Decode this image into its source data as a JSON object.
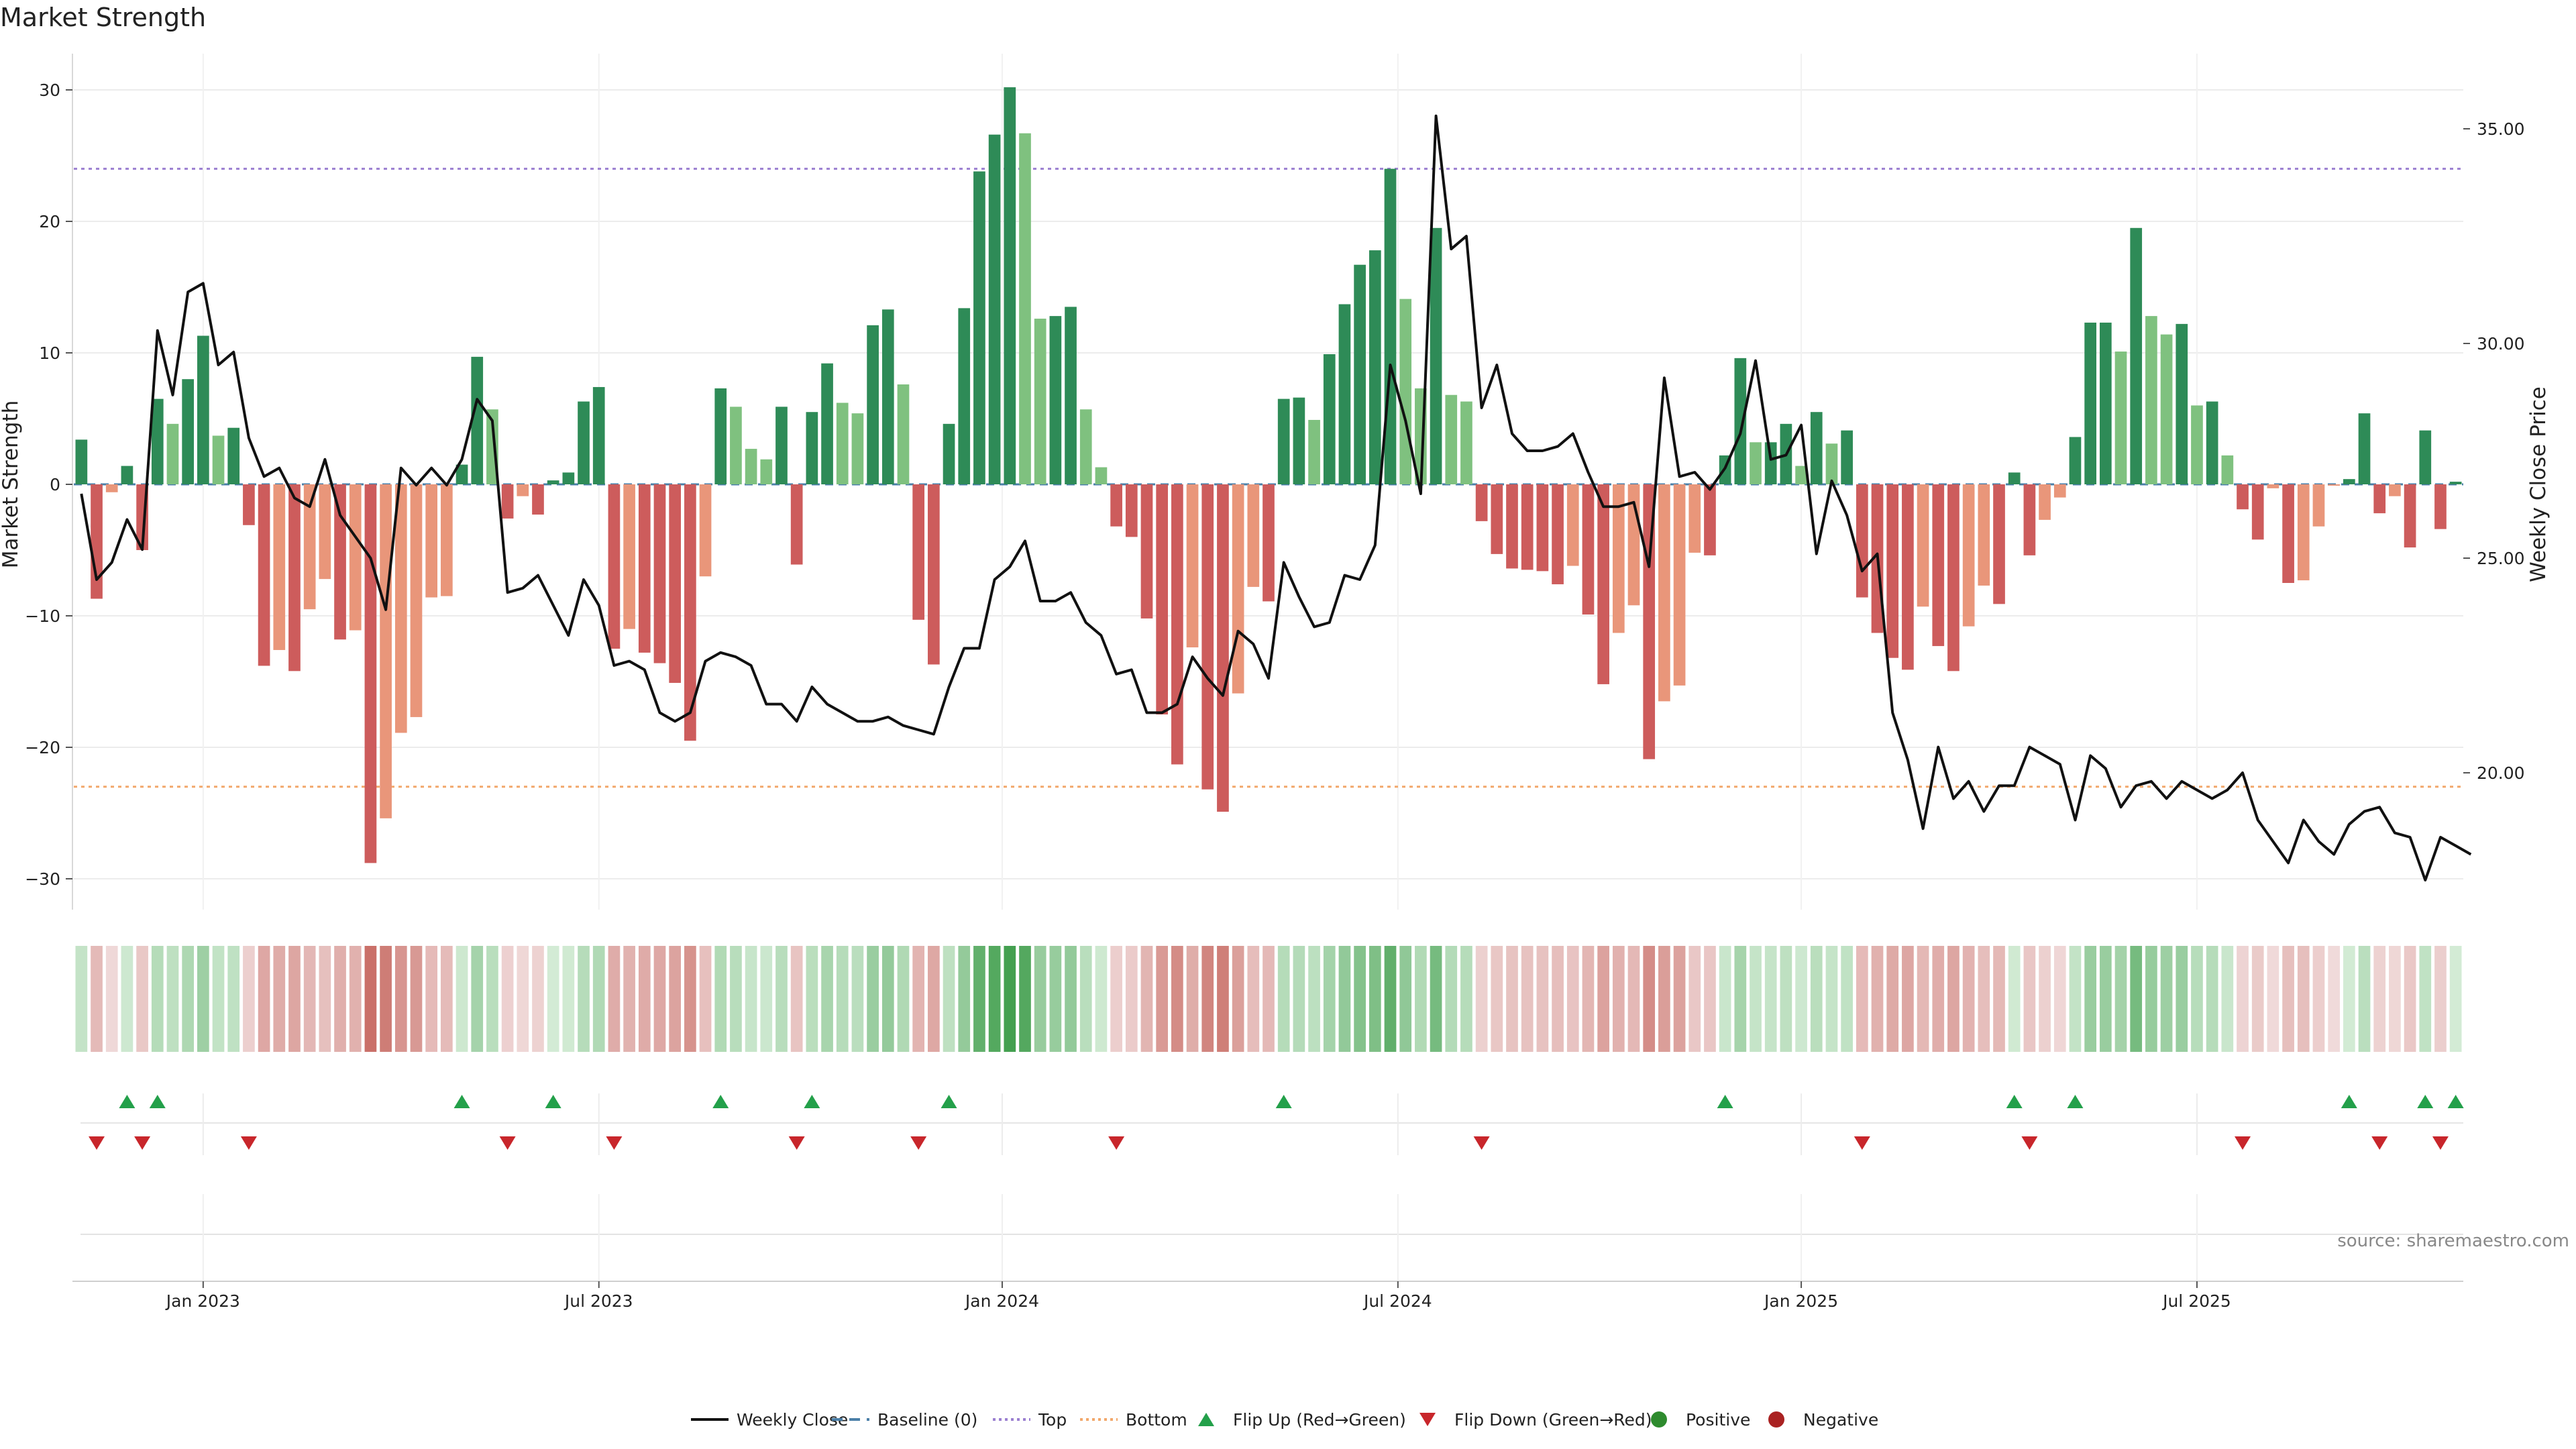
{
  "header": {
    "title": "Market Strength"
  },
  "source_note": "source: sharemaestro.com",
  "legend": [
    {
      "label": "Weekly Close",
      "symbol": "line",
      "color": "#111111"
    },
    {
      "label": "Baseline (0)",
      "symbol": "dash",
      "color": "#4a7fa8"
    },
    {
      "label": "Top",
      "symbol": "dot",
      "color": "#9b7fd1"
    },
    {
      "label": "Bottom",
      "symbol": "dot",
      "color": "#f2a86b"
    },
    {
      "label": "Flip Up (Red→Green)",
      "symbol": "tri-up",
      "color": "#23a04a"
    },
    {
      "label": "Flip Down (Green→Red)",
      "symbol": "tri-down",
      "color": "#c8262b"
    },
    {
      "label": "Positive",
      "symbol": "dot-fill",
      "color": "#2e8b2e"
    },
    {
      "label": "Negative",
      "symbol": "dot-fill",
      "color": "#aa2222"
    }
  ],
  "chart_data": {
    "type": "bar",
    "title": "Market Strength",
    "ylabel": "Market Strength",
    "y2label": "Weekly Close Price",
    "ylim": [
      -33,
      33
    ],
    "y2lim": [
      17.5,
      36.5
    ],
    "yticks": [
      -30,
      -20,
      -10,
      0,
      10,
      20,
      30
    ],
    "ytick_labels": [
      "−30",
      "−20",
      "−10",
      "0",
      "10",
      "20",
      "30"
    ],
    "y2ticks": [
      20,
      25,
      30,
      35
    ],
    "y2tick_labels": [
      "20.00",
      "25.00",
      "30.00",
      "35.00"
    ],
    "xticks": [
      {
        "label": "Jan 2023",
        "index": 8
      },
      {
        "label": "Jul 2023",
        "index": 34
      },
      {
        "label": "Jan 2024",
        "index": 60.5
      },
      {
        "label": "Jul 2024",
        "index": 86.5
      },
      {
        "label": "Jan 2025",
        "index": 113
      },
      {
        "label": "Jul 2025",
        "index": 139
      }
    ],
    "top_line": 24,
    "bottom_line": -23,
    "grid": true,
    "legend_position": "bottom-center",
    "colors": {
      "strong_pos": "#2e8b57",
      "weak_pos": "#7fc17f",
      "strong_neg": "#cd5c5c",
      "weak_neg": "#e9967a",
      "close": "#111111"
    },
    "strength": [
      3.4,
      -8.7,
      -0.6,
      1.4,
      -5,
      6.5,
      4.6,
      8,
      11.3,
      3.7,
      4.3,
      -3.1,
      -13.8,
      -12.6,
      -14.2,
      -9.5,
      -7.2,
      -11.8,
      -11.1,
      -28.8,
      -25.4,
      -18.9,
      -17.7,
      -8.6,
      -8.5,
      1.5,
      9.7,
      5.7,
      -2.6,
      -0.9,
      -2.3,
      0.3,
      0.9,
      6.3,
      7.4,
      -12.5,
      -11,
      -12.8,
      -13.6,
      -15.1,
      -19.5,
      -7,
      7.3,
      5.9,
      2.7,
      1.9,
      5.9,
      -6.1,
      5.5,
      9.2,
      6.2,
      5.4,
      12.1,
      13.3,
      7.6,
      -10.3,
      -13.7,
      4.6,
      13.4,
      23.8,
      26.6,
      30.2,
      26.7,
      12.6,
      12.8,
      13.5,
      5.7,
      1.3,
      -3.2,
      -4,
      -10.2,
      -17.5,
      -21.3,
      -12.4,
      -23.2,
      -24.9,
      -15.9,
      -7.8,
      -8.9,
      6.5,
      6.6,
      4.9,
      9.9,
      13.7,
      16.7,
      17.8,
      24,
      14.1,
      7.3,
      19.5,
      6.8,
      6.3,
      -2.8,
      -5.3,
      -6.4,
      -6.5,
      -6.6,
      -7.6,
      -6.2,
      -9.9,
      -15.2,
      -11.3,
      -9.2,
      -20.9,
      -16.5,
      -15.3,
      -5.2,
      -5.4,
      2.2,
      9.6,
      3.2,
      3.2,
      4.6,
      1.4,
      5.5,
      3.1,
      4.1,
      -8.6,
      -11.3,
      -13.2,
      -14.1,
      -9.3,
      -12.3,
      -14.2,
      -10.8,
      -7.7,
      -9.1,
      0.9,
      -5.4,
      -2.7,
      -1,
      3.6,
      12.3,
      12.3,
      10.1,
      19.5,
      12.8,
      11.4,
      12.2,
      6,
      6.3,
      2.2,
      -1.9,
      -4.2,
      -0.3,
      -7.5,
      -7.3,
      -3.2,
      -0.1,
      0.4,
      5.4,
      -2.2,
      -0.9,
      -4.8,
      4.1,
      -3.4,
      0.2
    ],
    "weekly_close": [
      26.5,
      24.5,
      24.9,
      25.9,
      25.2,
      30.3,
      28.8,
      31.2,
      31.4,
      29.5,
      29.8,
      27.8,
      26.9,
      27.1,
      26.4,
      26.2,
      27.3,
      26,
      25.5,
      25,
      23.8,
      27.1,
      26.7,
      27.1,
      26.7,
      27.3,
      28.7,
      28.2,
      24.2,
      24.3,
      24.6,
      23.9,
      23.2,
      24.5,
      23.9,
      22.5,
      22.6,
      22.4,
      21.4,
      21.2,
      21.4,
      22.6,
      22.8,
      22.7,
      22.5,
      21.6,
      21.6,
      21.2,
      22,
      21.6,
      21.4,
      21.2,
      21.2,
      21.3,
      21.1,
      21,
      20.9,
      22,
      22.9,
      22.9,
      24.5,
      24.8,
      25.4,
      24,
      24,
      24.2,
      23.5,
      23.2,
      22.3,
      22.4,
      21.4,
      21.4,
      21.6,
      22.7,
      22.2,
      21.8,
      23.3,
      23,
      22.2,
      24.9,
      24.1,
      23.4,
      23.5,
      24.6,
      24.5,
      25.3,
      29.5,
      28.2,
      26.5,
      35.3,
      32.2,
      32.5,
      28.5,
      29.5,
      27.9,
      27.5,
      27.5,
      27.6,
      27.9,
      27,
      26.2,
      26.2,
      26.3,
      24.8,
      29.2,
      26.9,
      27,
      26.6,
      27.1,
      27.9,
      29.6,
      27.3,
      27.4,
      28.1,
      25.1,
      26.8,
      26,
      24.7,
      25.1,
      21.4,
      20.3,
      18.7,
      20.6,
      19.4,
      19.8,
      19.1,
      19.7,
      19.7,
      20.6,
      20.4,
      20.2,
      18.9,
      20.4,
      20.1,
      19.2,
      19.7,
      19.8,
      19.4,
      19.8,
      19.6,
      19.4,
      19.6,
      20,
      18.9,
      18.4,
      17.9,
      18.9,
      18.4,
      18.1,
      18.8,
      19.1,
      19.2,
      18.6,
      18.5,
      17.5,
      18.5,
      18.3,
      18.1
    ],
    "flip_up_indices": [
      3,
      5,
      25,
      31,
      42,
      48,
      57,
      79,
      108,
      127,
      131,
      149,
      154,
      156
    ],
    "flip_down_indices": [
      1,
      4,
      11,
      28,
      35,
      47,
      55,
      68,
      92,
      117,
      128,
      142,
      151,
      155
    ]
  }
}
